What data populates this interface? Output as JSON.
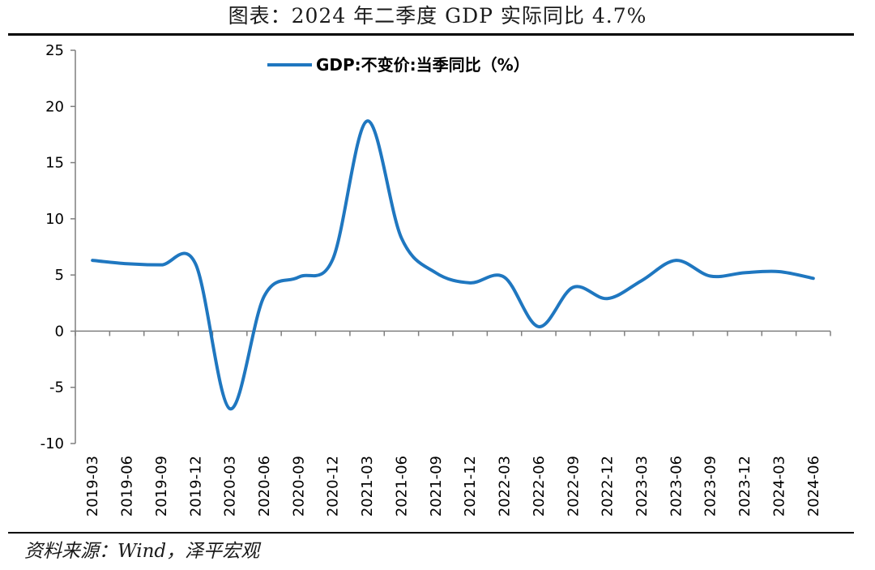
{
  "header": {
    "title": "图表：2024 年二季度 GDP 实际同比 4.7%"
  },
  "footer": {
    "source": "资料来源：Wind，泽平宏观"
  },
  "colors": {
    "line": "#1f77c0",
    "axis": "#7f7f7f",
    "rule": "#000000"
  },
  "chart_data": {
    "type": "line",
    "title": "图表：2024 年二季度 GDP 实际同比 4.7%",
    "xlabel": "",
    "ylabel": "",
    "categories": [
      "2019-03",
      "2019-06",
      "2019-09",
      "2019-12",
      "2020-03",
      "2020-06",
      "2020-09",
      "2020-12",
      "2021-03",
      "2021-06",
      "2021-09",
      "2021-12",
      "2022-03",
      "2022-06",
      "2022-09",
      "2022-12",
      "2023-03",
      "2023-06",
      "2023-09",
      "2023-12",
      "2024-03",
      "2024-06"
    ],
    "series": [
      {
        "name": "GDP:不变价:当季同比（%）",
        "values": [
          6.3,
          6.0,
          5.9,
          6.0,
          -6.9,
          3.1,
          4.8,
          6.4,
          18.7,
          8.3,
          5.2,
          4.3,
          4.8,
          0.4,
          3.9,
          2.9,
          4.5,
          6.3,
          4.9,
          5.2,
          5.3,
          4.7
        ]
      }
    ],
    "yticks": [
      25,
      20,
      15,
      10,
      5,
      0,
      -5,
      -10
    ],
    "ylim": [
      -10,
      25
    ],
    "grid": false,
    "legend": "top-center"
  }
}
